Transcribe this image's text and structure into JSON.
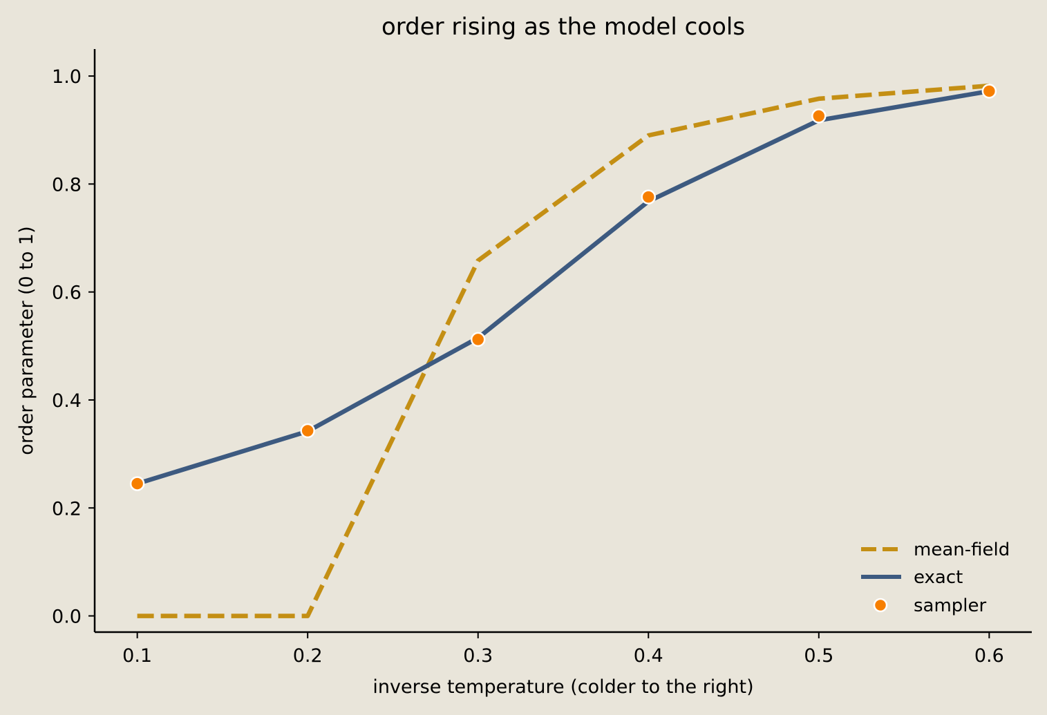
{
  "chart_data": {
    "type": "line",
    "title": "order rising as the model cools",
    "xlabel": "inverse temperature  (colder to the right)",
    "ylabel": "order parameter  (0 to 1)",
    "xlim": [
      0.075,
      0.625
    ],
    "ylim": [
      -0.03,
      1.05
    ],
    "x_ticks": [
      "0.1",
      "0.2",
      "0.3",
      "0.4",
      "0.5",
      "0.6"
    ],
    "y_ticks": [
      "0.0",
      "0.2",
      "0.4",
      "0.6",
      "0.8",
      "1.0"
    ],
    "grid": false,
    "legend_position": "lower-right",
    "x": [
      0.1,
      0.2,
      0.3,
      0.4,
      0.5,
      0.6
    ],
    "series": [
      {
        "name": "mean-field",
        "style": "dashed line",
        "color": "#c48f14",
        "values": [
          0.0,
          0.0,
          0.658,
          0.89,
          0.958,
          0.982
        ]
      },
      {
        "name": "exact",
        "style": "solid line",
        "color": "#3d5a80",
        "values": [
          0.245,
          0.342,
          0.515,
          0.768,
          0.918,
          0.972
        ]
      },
      {
        "name": "sampler",
        "style": "markers",
        "color": "#f77f00",
        "values": [
          0.245,
          0.343,
          0.512,
          0.776,
          0.926,
          0.972
        ]
      }
    ],
    "colors": {
      "background": "#e9e5da",
      "axis": "#000000",
      "marker_edge": "#ffffff"
    }
  }
}
